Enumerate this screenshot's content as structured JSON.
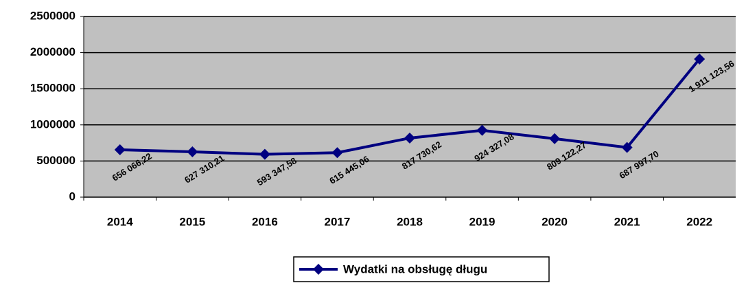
{
  "chart_data": {
    "type": "line",
    "categories": [
      "2014",
      "2015",
      "2016",
      "2017",
      "2018",
      "2019",
      "2020",
      "2021",
      "2022"
    ],
    "series": [
      {
        "name": "Wydatki na obsługę długu",
        "color": "#000080",
        "values": [
          656066.22,
          627310.21,
          593347.58,
          615445.06,
          817730.62,
          924327.08,
          809122.27,
          687997.7,
          1911123.56
        ],
        "value_labels": [
          "656 066,22",
          "627 310,21",
          "593 347,58",
          "615 445,06",
          "817 730,62",
          "924 327,08",
          "809 122,27",
          "687 997,70",
          "1 911 123,56"
        ]
      }
    ],
    "ylim": [
      0,
      2500000
    ],
    "yticks": [
      0,
      500000,
      1000000,
      1500000,
      2000000,
      2500000
    ],
    "grid": true,
    "legend": "bottom"
  }
}
